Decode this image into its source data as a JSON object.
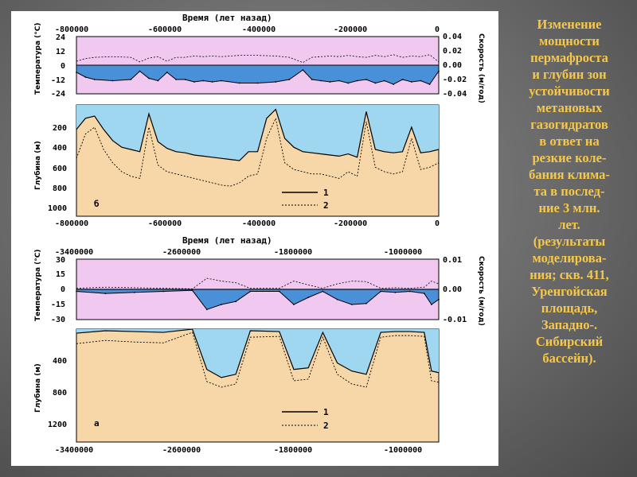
{
  "caption": {
    "lines": [
      "Изменение",
      "мощности",
      "пермафроста",
      "и глубин зон",
      "устойчивости",
      "метановых",
      "газогидратов",
      "в ответ на",
      "резкие коле-",
      "бания клима-",
      "та в послед-",
      "ние 3 млн.",
      "лет.",
      "(результаты",
      "моделирова-",
      "ния; скв. 411,",
      "Уренгойская",
      "площадь,",
      "Западно-.",
      "Сибирский",
      "бассейн)."
    ]
  },
  "colors": {
    "temp_band": "#f0c8f0",
    "depth_fill": "#f7d7a8",
    "blue_fill": "#4a90d9",
    "light_blue": "#9fd6f0"
  },
  "panels": {
    "b": {
      "time_title": "Время (лет назад)",
      "top_ticks": [
        "-800000",
        "-600000",
        "-400000",
        "-200000",
        "0"
      ],
      "bottom_ticks": [
        "-800000",
        "-600000",
        "-400000",
        "-200000",
        "0"
      ],
      "temp_label": "Температура (°С)",
      "temp_ticks": [
        "24",
        "12",
        "0",
        "-12",
        "-24"
      ],
      "speed_label": "Скорость (м/год)",
      "speed_ticks": [
        "0.04",
        "0.02",
        "0.00",
        "-0.02",
        "-0.04"
      ],
      "depth_label": "Глубина (м)",
      "depth_ticks": [
        "200",
        "400",
        "600",
        "800",
        "1000"
      ],
      "panel_letter": "б",
      "legend": [
        "1",
        "2"
      ]
    },
    "a": {
      "time_title": "Время (лет назад)",
      "top_ticks": [
        "-3400000",
        "-2600000",
        "-1800000",
        "-1000000"
      ],
      "bottom_ticks": [
        "-3400000",
        "-2600000",
        "-1800000",
        "-1000000"
      ],
      "temp_label": "Температура (°С)",
      "temp_ticks": [
        "30",
        "15",
        "0",
        "-15",
        "-30"
      ],
      "speed_label": "Скорость (м/год)",
      "speed_ticks": [
        "0.01",
        "0.00",
        "-0.01"
      ],
      "depth_label": "Глубина (м)",
      "depth_ticks": [
        "400",
        "800",
        "1200"
      ],
      "panel_letter": "а",
      "legend": [
        "1",
        "2"
      ]
    }
  },
  "chart_data": [
    {
      "type": "area",
      "panel": "б",
      "xlabel": "Время (лет назад)",
      "xlim": [
        -800000,
        0
      ],
      "temperature": {
        "ylabel": "Температура (°С)",
        "ylim": [
          -24,
          24
        ],
        "x": [
          -800000,
          -780000,
          -760000,
          -720000,
          -680000,
          -660000,
          -640000,
          -620000,
          -600000,
          -580000,
          -560000,
          -540000,
          -520000,
          -500000,
          -480000,
          -440000,
          -400000,
          -360000,
          -330000,
          -300000,
          -280000,
          -260000,
          -240000,
          -220000,
          -200000,
          -180000,
          -160000,
          -140000,
          -120000,
          -100000,
          -80000,
          -60000,
          -40000,
          -20000,
          0
        ],
        "y": [
          -6,
          -10,
          -12,
          -13,
          -12,
          -5,
          -11,
          -13,
          -6,
          -12,
          -12,
          -14,
          -13,
          -14,
          -13,
          -15,
          -15,
          -14,
          -12,
          -4,
          -12,
          -13,
          -14,
          -13,
          -15,
          -13,
          -12,
          -15,
          -13,
          -16,
          -12,
          -14,
          -13,
          -16,
          -5
        ]
      },
      "depth": {
        "ylabel": "Глубина (м)",
        "ylim": [
          1000,
          0
        ],
        "x": [
          -800000,
          -780000,
          -760000,
          -740000,
          -720000,
          -700000,
          -680000,
          -660000,
          -640000,
          -620000,
          -600000,
          -580000,
          -560000,
          -540000,
          -520000,
          -500000,
          -480000,
          -460000,
          -440000,
          -420000,
          -400000,
          -380000,
          -360000,
          -340000,
          -320000,
          -300000,
          -280000,
          -260000,
          -240000,
          -220000,
          -200000,
          -180000,
          -160000,
          -140000,
          -120000,
          -100000,
          -80000,
          -60000,
          -40000,
          -20000,
          0
        ],
        "series": [
          {
            "name": "1",
            "values": [
              220,
              120,
              100,
              220,
              320,
              380,
              400,
              420,
              80,
              330,
              390,
              420,
              430,
              450,
              460,
              470,
              480,
              490,
              500,
              420,
              420,
              120,
              40,
              300,
              380,
              420,
              430,
              440,
              450,
              460,
              440,
              470,
              60,
              400,
              420,
              430,
              420,
              200,
              430,
              420,
              400
            ]
          },
          {
            "name": "2",
            "values": [
              480,
              260,
              200,
              400,
              520,
              600,
              640,
              660,
              200,
              540,
              600,
              620,
              640,
              660,
              680,
              700,
              720,
              730,
              700,
              640,
              620,
              300,
              120,
              520,
              580,
              600,
              620,
              620,
              640,
              660,
              600,
              640,
              150,
              560,
              600,
              620,
              600,
              300,
              580,
              560,
              520
            ]
          }
        ]
      }
    },
    {
      "type": "area",
      "panel": "а",
      "xlabel": "Время (лет назад)",
      "xlim": [
        -3400000,
        -900000
      ],
      "temperature": {
        "ylabel": "Температура (°С)",
        "ylim": [
          -30,
          30
        ],
        "x": [
          -3400000,
          -3200000,
          -3000000,
          -2800000,
          -2600000,
          -2500000,
          -2400000,
          -2300000,
          -2200000,
          -2000000,
          -1900000,
          -1800000,
          -1700000,
          -1600000,
          -1500000,
          -1400000,
          -1300000,
          -1200000,
          -1100000,
          -1000000,
          -950000,
          -900000
        ],
        "y": [
          -2,
          -4,
          -3,
          -2,
          -1,
          -20,
          -15,
          -12,
          -2,
          -2,
          -15,
          -8,
          -2,
          -10,
          -15,
          -14,
          -2,
          -3,
          -2,
          -4,
          -15,
          -10
        ]
      },
      "depth": {
        "ylabel": "Глубина (м)",
        "ylim": [
          1400,
          0
        ],
        "x": [
          -3400000,
          -3200000,
          -3000000,
          -2800000,
          -2600000,
          -2500000,
          -2400000,
          -2300000,
          -2200000,
          -2000000,
          -1900000,
          -1800000,
          -1700000,
          -1600000,
          -1500000,
          -1400000,
          -1300000,
          -1200000,
          -1100000,
          -1000000,
          -950000,
          -900000
        ],
        "series": [
          {
            "name": "1",
            "values": [
              50,
              20,
              30,
              40,
              0,
              500,
              600,
              560,
              20,
              30,
              500,
              480,
              40,
              420,
              520,
              560,
              40,
              30,
              30,
              40,
              520,
              540
            ]
          },
          {
            "name": "2",
            "values": [
              180,
              140,
              160,
              170,
              40,
              650,
              720,
              680,
              100,
              90,
              640,
              620,
              100,
              560,
              680,
              720,
              100,
              80,
              80,
              90,
              640,
              660
            ]
          }
        ]
      }
    }
  ]
}
